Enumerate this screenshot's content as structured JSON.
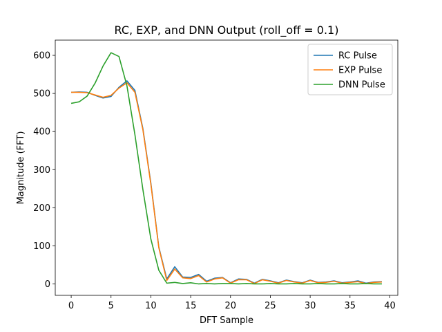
{
  "chart_data": {
    "type": "line",
    "title": "RC, EXP, and DNN Output (roll_off = 0.1)",
    "xlabel": "DFT Sample",
    "ylabel": "Magnitude (FFT)",
    "xlim": [
      -2,
      41
    ],
    "ylim": [
      -30,
      640
    ],
    "xticks": [
      0,
      5,
      10,
      15,
      20,
      25,
      30,
      35,
      40
    ],
    "yticks": [
      0,
      100,
      200,
      300,
      400,
      500,
      600
    ],
    "grid": false,
    "legend_position": "top-right",
    "x": [
      0,
      1,
      2,
      3,
      4,
      5,
      6,
      7,
      8,
      9,
      10,
      11,
      12,
      13,
      14,
      15,
      16,
      17,
      18,
      19,
      20,
      21,
      22,
      23,
      24,
      25,
      26,
      27,
      28,
      29,
      30,
      31,
      32,
      33,
      34,
      35,
      36,
      37,
      38,
      39
    ],
    "series": [
      {
        "name": "RC Pulse",
        "color": "#1f77b4",
        "values": [
          503,
          504,
          503,
          495,
          488,
          492,
          516,
          533,
          508,
          408,
          265,
          97,
          13,
          45,
          18,
          17,
          25,
          7,
          15,
          17,
          3,
          13,
          12,
          2,
          12,
          8,
          3,
          10,
          6,
          3,
          10,
          4,
          5,
          8,
          3,
          5,
          8,
          2,
          5,
          6
        ]
      },
      {
        "name": "EXP Pulse",
        "color": "#ff7f0e",
        "values": [
          503,
          503,
          502,
          496,
          490,
          495,
          514,
          528,
          503,
          405,
          262,
          95,
          9,
          39,
          16,
          14,
          22,
          5,
          13,
          16,
          2,
          11,
          11,
          1,
          11,
          7,
          2,
          9,
          5,
          2,
          9,
          3,
          4,
          7,
          2,
          4,
          6,
          1,
          4,
          5
        ]
      },
      {
        "name": "DNN Pulse",
        "color": "#2ca02c",
        "values": [
          474,
          478,
          493,
          527,
          572,
          607,
          597,
          520,
          392,
          248,
          118,
          36,
          2,
          4,
          1,
          3,
          0,
          1,
          0,
          1,
          1,
          0,
          1,
          0,
          0,
          1,
          0,
          0,
          1,
          0,
          0,
          1,
          0,
          0,
          1,
          0,
          0,
          1,
          0,
          0
        ]
      }
    ]
  }
}
